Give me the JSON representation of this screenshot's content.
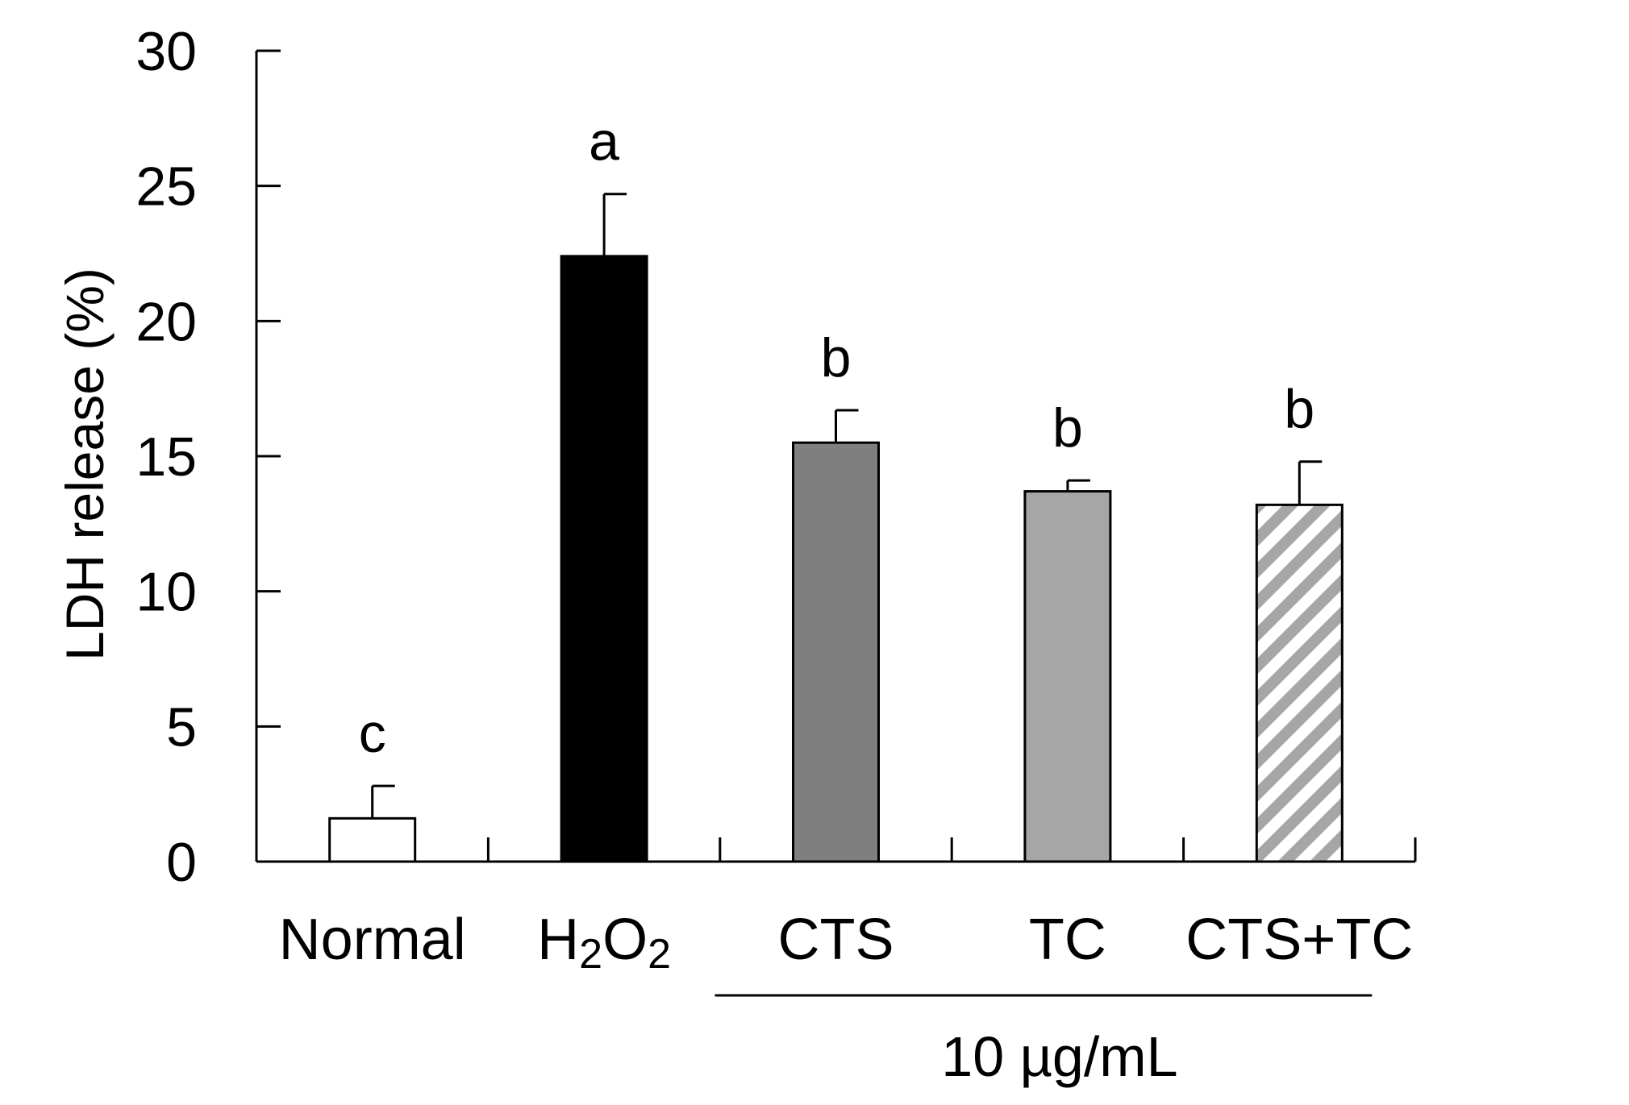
{
  "chart_data": {
    "type": "bar",
    "title": "",
    "xlabel": "",
    "ylabel": "LDH release (%)",
    "ylim": [
      0,
      30
    ],
    "yticks": [
      0,
      5,
      10,
      15,
      20,
      25,
      30
    ],
    "grid": false,
    "legend": "none",
    "categories": [
      "Normal",
      "H2O2",
      "CTS",
      "TC",
      "CTS+TC"
    ],
    "category_display": [
      {
        "main": "Normal"
      },
      {
        "main": "H",
        "sub1": "2",
        "mid": "O",
        "sub2": "2"
      },
      {
        "main": "CTS"
      },
      {
        "main": "TC"
      },
      {
        "main": "CTS+TC"
      }
    ],
    "values": [
      1.6,
      22.4,
      15.5,
      13.7,
      13.2
    ],
    "errors": [
      1.2,
      2.3,
      1.2,
      0.4,
      1.6
    ],
    "significance": [
      "c",
      "a",
      "b",
      "b",
      "b"
    ],
    "fills": [
      "#ffffff",
      "#000000",
      "#7f7f7f",
      "#a6a6a6",
      "hatch"
    ],
    "hatch_color": "#a6a6a6",
    "group_annotation": {
      "label": "10 µg/mL",
      "categories": [
        "CTS",
        "TC",
        "CTS+TC"
      ]
    }
  }
}
